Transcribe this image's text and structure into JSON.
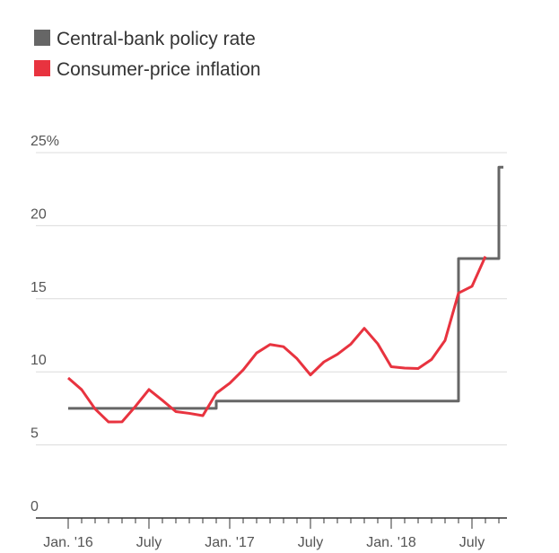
{
  "chart_data": {
    "type": "line",
    "categories": [
      "Jan. '16",
      null,
      null,
      null,
      null,
      null,
      "July",
      null,
      null,
      null,
      null,
      null,
      "Jan. '17",
      null,
      null,
      null,
      null,
      null,
      "July",
      null,
      null,
      null,
      null,
      null,
      "Jan. '18",
      null,
      null,
      null,
      null,
      null,
      "July",
      null,
      null
    ],
    "series": [
      {
        "name": "Central-bank policy rate",
        "color": "#666666",
        "step": true,
        "values": [
          7.5,
          7.5,
          7.5,
          7.5,
          7.5,
          7.5,
          7.5,
          7.5,
          7.5,
          7.5,
          7.5,
          8,
          8,
          8,
          8,
          8,
          8,
          8,
          8,
          8,
          8,
          8,
          8,
          8,
          8,
          8,
          8,
          8,
          8,
          17.75,
          17.75,
          17.75,
          24
        ]
      },
      {
        "name": "Consumer-price inflation",
        "color": "#e8333f",
        "values": [
          9.58,
          8.78,
          7.46,
          6.57,
          6.58,
          7.64,
          8.79,
          8.05,
          7.28,
          7.16,
          7.0,
          8.53,
          9.22,
          10.13,
          11.29,
          11.87,
          11.72,
          10.9,
          9.79,
          10.68,
          11.2,
          11.9,
          12.98,
          11.92,
          10.35,
          10.26,
          10.23,
          10.85,
          12.15,
          15.39,
          15.85,
          17.9,
          null
        ]
      }
    ],
    "ylim": [
      0,
      25
    ],
    "yticks": [
      0,
      5,
      10,
      15,
      20,
      {
        "value": 25,
        "label": "25%"
      }
    ],
    "grid": true
  }
}
